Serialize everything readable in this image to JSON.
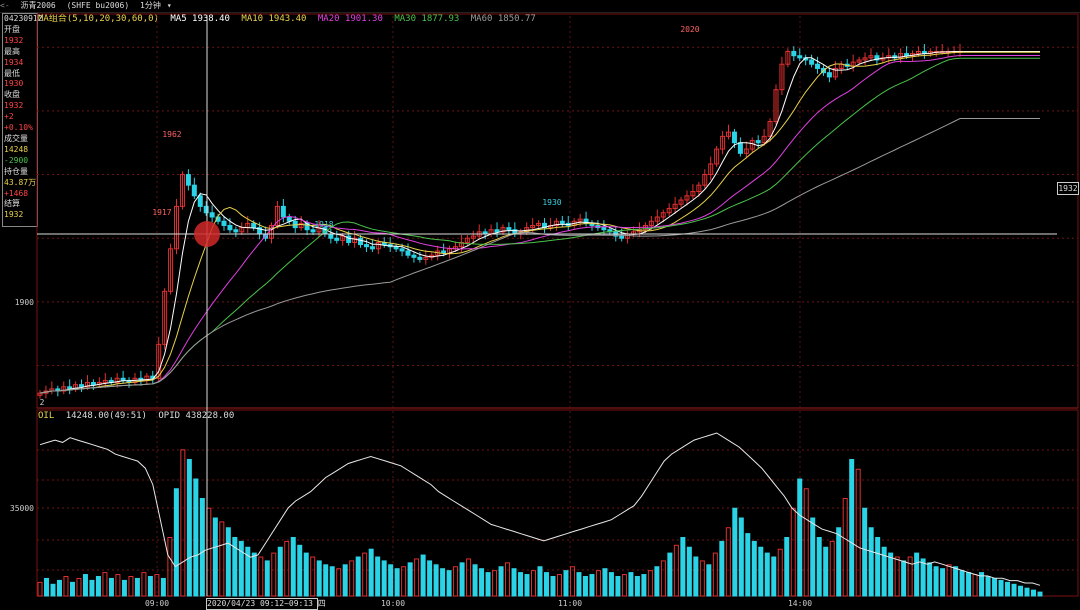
{
  "header": {
    "symbol_code": "沥青2006",
    "exchange": "(SHFE bu2006)",
    "period": "1分钟"
  },
  "ma_legend": {
    "title": "MA组合(5,10,20,30,60,0)",
    "items": [
      {
        "label": "MA5 1938.40",
        "color": "#ffffff"
      },
      {
        "label": "MA10 1943.40",
        "color": "#e8d24a"
      },
      {
        "label": "MA20 1901.30",
        "color": "#e040e0"
      },
      {
        "label": "MA30 1877.93",
        "color": "#4ac24a"
      },
      {
        "label": "MA60 1850.77",
        "color": "#9a9a9a"
      }
    ]
  },
  "vol_legend": {
    "name": "OIL",
    "volume": "14248.00(49:51)",
    "opid": "OPID 438228.00"
  },
  "infobox": {
    "date": "04230912",
    "rows": [
      {
        "label": "开盘",
        "value": "1932",
        "color": "#ff4444"
      },
      {
        "label": "最高",
        "value": "1934",
        "color": "#ff4444"
      },
      {
        "label": "最低",
        "value": "1930",
        "color": "#ff4444"
      },
      {
        "label": "收盘",
        "value": "1932",
        "color": "#ff4444"
      },
      {
        "label": "",
        "value": "+2",
        "color": "#ff4444"
      },
      {
        "label": "",
        "value": "+0.10%",
        "color": "#ff4444"
      },
      {
        "label": "成交量",
        "value": "14248",
        "color": "#e8d24a"
      },
      {
        "label": "",
        "value": "-2900",
        "color": "#4ac24a"
      },
      {
        "label": "持仓量",
        "value": "43.87万",
        "color": "#e8d24a"
      },
      {
        "label": "",
        "value": "+1468",
        "color": "#ff4444"
      },
      {
        "label": "结算",
        "value": "1932",
        "color": "#e8d24a"
      }
    ]
  },
  "crosshair": {
    "price_label": "1932",
    "time_label": "2020/04/23 09:12~09:13 四"
  },
  "chart_data": {
    "type": "candlestick",
    "price_axis": {
      "tick_labels": [
        "1900"
      ],
      "ylim": [
        1850,
        2030
      ]
    },
    "volume_axis": {
      "tick_labels": [
        "35000"
      ]
    },
    "x_tick_labels": [
      "09:00",
      "10:00",
      "11:00",
      "14:00"
    ],
    "annotations": [
      {
        "text": "1962",
        "color": "#ff6060"
      },
      {
        "text": "1918",
        "color": "#3ad0e0"
      },
      {
        "text": "1930",
        "color": "#3ad0e0"
      },
      {
        "text": "2020",
        "color": "#ff6060"
      },
      {
        "text": "1917",
        "color": "#ff6060"
      },
      {
        "text": "2"
      }
    ],
    "close_path": [
      1857,
      1858,
      1859,
      1858,
      1860,
      1859,
      1861,
      1860,
      1862,
      1861,
      1862,
      1863,
      1862,
      1864,
      1863,
      1862,
      1864,
      1863,
      1865,
      1864,
      1880,
      1905,
      1925,
      1945,
      1960,
      1955,
      1950,
      1945,
      1942,
      1940,
      1938,
      1936,
      1934,
      1933,
      1935,
      1937,
      1935,
      1932,
      1930,
      1936,
      1945,
      1940,
      1938,
      1935,
      1937,
      1934,
      1933,
      1935,
      1932,
      1930,
      1929,
      1931,
      1928,
      1930,
      1927,
      1926,
      1925,
      1928,
      1927,
      1926,
      1925,
      1924,
      1922,
      1921,
      1920,
      1921,
      1922,
      1924,
      1923,
      1925,
      1926,
      1928,
      1930,
      1931,
      1933,
      1932,
      1934,
      1933,
      1935,
      1934,
      1932,
      1933,
      1935,
      1936,
      1937,
      1935,
      1936,
      1938,
      1937,
      1936,
      1938,
      1939,
      1937,
      1936,
      1935,
      1934,
      1933,
      1931,
      1930,
      1932,
      1933,
      1934,
      1936,
      1938,
      1940,
      1942,
      1944,
      1946,
      1948,
      1950,
      1952,
      1955,
      1960,
      1965,
      1972,
      1978,
      1980,
      1975,
      1970,
      1972,
      1976,
      1975,
      1978,
      1985,
      2000,
      2012,
      2018,
      2016,
      2015,
      2014,
      2012,
      2010,
      2008,
      2006,
      2010,
      2012,
      2011,
      2013,
      2014,
      2015,
      2016,
      2014,
      2015,
      2016,
      2015,
      2017,
      2016,
      2017,
      2018,
      2017,
      2018,
      2018,
      2018,
      2018,
      2018,
      2018
    ],
    "volume_path": [
      7,
      9,
      6,
      8,
      10,
      7,
      9,
      11,
      8,
      10,
      12,
      9,
      11,
      8,
      10,
      9,
      12,
      10,
      11,
      9,
      30,
      55,
      75,
      70,
      60,
      50,
      45,
      40,
      38,
      35,
      30,
      28,
      25,
      22,
      20,
      18,
      22,
      25,
      28,
      30,
      26,
      22,
      20,
      18,
      16,
      15,
      14,
      16,
      18,
      20,
      22,
      24,
      20,
      18,
      16,
      14,
      15,
      17,
      19,
      21,
      18,
      16,
      14,
      13,
      15,
      17,
      19,
      16,
      14,
      12,
      13,
      15,
      17,
      14,
      12,
      11,
      13,
      15,
      12,
      10,
      11,
      13,
      15,
      12,
      10,
      11,
      13,
      14,
      12,
      10,
      11,
      12,
      10,
      11,
      13,
      15,
      18,
      22,
      26,
      30,
      25,
      20,
      18,
      16,
      22,
      28,
      35,
      45,
      40,
      32,
      28,
      25,
      22,
      20,
      24,
      30,
      45,
      60,
      55,
      40,
      30,
      25,
      28,
      35,
      50,
      70,
      65,
      45,
      35,
      30,
      25,
      22,
      20,
      18,
      20,
      22,
      19,
      17,
      15,
      14,
      16,
      15,
      13,
      12,
      11,
      12,
      10,
      9,
      8,
      7,
      6,
      5,
      4,
      3,
      2
    ],
    "oi_path": [
      62,
      63,
      64,
      63,
      65,
      64,
      63,
      62,
      61,
      60,
      58,
      57,
      56,
      55,
      52,
      45,
      30,
      15,
      10,
      12,
      14,
      15,
      17,
      18,
      19,
      20,
      18,
      16,
      14,
      15,
      20,
      25,
      30,
      35,
      38,
      40,
      42,
      45,
      48,
      50,
      52,
      54,
      55,
      56,
      57,
      56,
      55,
      54,
      53,
      51,
      49,
      47,
      45,
      42,
      40,
      38,
      36,
      34,
      32,
      30,
      28,
      27,
      26,
      25,
      24,
      23,
      22,
      21,
      22,
      23,
      24,
      25,
      26,
      27,
      28,
      29,
      30,
      32,
      34,
      36,
      40,
      45,
      50,
      55,
      58,
      60,
      62,
      64,
      65,
      66,
      67,
      65,
      63,
      61,
      58,
      55,
      52,
      48,
      44,
      40,
      35,
      32,
      30,
      28,
      26,
      25,
      24,
      22,
      20,
      18,
      17,
      16,
      15,
      14,
      13,
      12,
      11,
      12,
      11,
      12,
      11,
      10,
      9,
      8,
      7,
      6,
      6,
      5,
      5,
      4,
      4,
      3,
      3,
      2
    ]
  }
}
